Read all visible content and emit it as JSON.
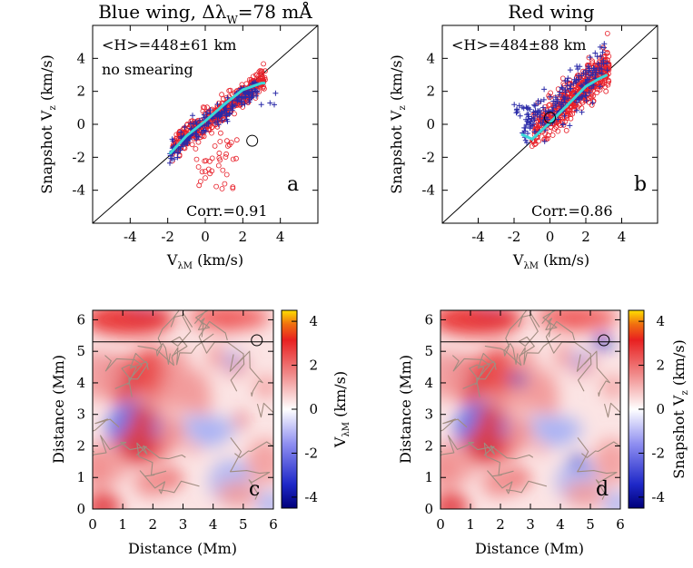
{
  "chart_data": [
    {
      "panel": "a",
      "type": "scatter",
      "title": "Blue wing,  Δλ",
      "title_sub": "W",
      "title_tail": "=78 mÅ",
      "xlabel": "V",
      "xlabel_sub": "λM",
      "xlabel_unit": "(km/s)",
      "ylabel": "Snapshot V",
      "ylabel_sub": "z",
      "ylabel_unit": "(km/s)",
      "xlim": [
        -6,
        6
      ],
      "ylim": [
        -6,
        6
      ],
      "xticks": [
        "-4",
        "-2",
        "0",
        "2",
        "4"
      ],
      "yticks": [
        "-4",
        "-2",
        "0",
        "2",
        "4"
      ],
      "annotation_height": "<H>=448±61 km",
      "annotation_note": "no smearing",
      "corr_label": "Corr.=0.91",
      "label": "a",
      "marked_point": [
        2.5,
        -1.0
      ],
      "fit_line": [
        [
          -1.9,
          -1.8
        ],
        [
          -1.0,
          -0.7
        ],
        [
          0,
          0.2
        ],
        [
          1.0,
          1.2
        ],
        [
          2.0,
          2.1
        ],
        [
          3.0,
          2.5
        ],
        [
          3.2,
          2.5
        ]
      ],
      "seed": 3,
      "colors": {
        "red_circles": "#e8202a",
        "blue_plus": "#2a2aa8",
        "fit": "#3cd8d8"
      }
    },
    {
      "panel": "b",
      "type": "scatter",
      "title": "Red wing",
      "xlabel": "V",
      "xlabel_sub": "λM",
      "xlabel_unit": "(km/s)",
      "ylabel": "Snapshot V",
      "ylabel_sub": "z",
      "ylabel_unit": "(km/s)",
      "xlim": [
        -6,
        6
      ],
      "ylim": [
        -6,
        6
      ],
      "xticks": [
        "-4",
        "-2",
        "0",
        "2",
        "4"
      ],
      "yticks": [
        "-4",
        "-2",
        "0",
        "2",
        "4"
      ],
      "annotation_height": "<H>=484±88 km",
      "corr_label": "Corr.=0.86",
      "label": "b",
      "marked_point": [
        0.0,
        0.4
      ],
      "fit_line": [
        [
          -1.6,
          -0.6
        ],
        [
          -1.0,
          -0.9
        ],
        [
          0,
          0.1
        ],
        [
          1.0,
          1.2
        ],
        [
          2.0,
          2.3
        ],
        [
          2.8,
          2.8
        ],
        [
          3.2,
          3.0
        ]
      ],
      "seed": 7,
      "colors": {
        "red_circles": "#e8202a",
        "blue_plus": "#2a2aa8",
        "fit": "#3cd8d8"
      }
    },
    {
      "panel": "c",
      "type": "heatmap",
      "xlabel": "Distance (Mm)",
      "ylabel": "Distance (Mm)",
      "xlim": [
        0,
        6
      ],
      "ylim": [
        0,
        6.3
      ],
      "xticks": [
        "0",
        "1",
        "2",
        "3",
        "4",
        "5",
        "6"
      ],
      "yticks": [
        "0",
        "1",
        "2",
        "3",
        "4",
        "5",
        "6"
      ],
      "colorbar_label": "V",
      "colorbar_sub": "λM",
      "colorbar_unit": "(km/s)",
      "colorbar_range": [
        -4.5,
        4.5
      ],
      "colorbar_ticks": [
        "4",
        "2",
        "0",
        "-2",
        "-4"
      ],
      "label": "c",
      "hline_y": 5.3,
      "marked_point": [
        5.45,
        5.35
      ],
      "seed": 11
    },
    {
      "panel": "d",
      "type": "heatmap",
      "xlabel": "Distance (Mm)",
      "ylabel": "Distance (Mm)",
      "xlim": [
        0,
        6
      ],
      "ylim": [
        0,
        6.3
      ],
      "xticks": [
        "0",
        "1",
        "2",
        "3",
        "4",
        "5",
        "6"
      ],
      "yticks": [
        "0",
        "1",
        "2",
        "3",
        "4",
        "5",
        "6"
      ],
      "colorbar_label": "Snapshot V",
      "colorbar_sub": "z",
      "colorbar_unit": "(km/s)",
      "colorbar_range": [
        -4.5,
        4.5
      ],
      "colorbar_ticks": [
        "4",
        "2",
        "0",
        "-2",
        "-4"
      ],
      "label": "d",
      "hline_y": 5.3,
      "marked_point": [
        5.45,
        5.35
      ],
      "seed": 11
    }
  ]
}
